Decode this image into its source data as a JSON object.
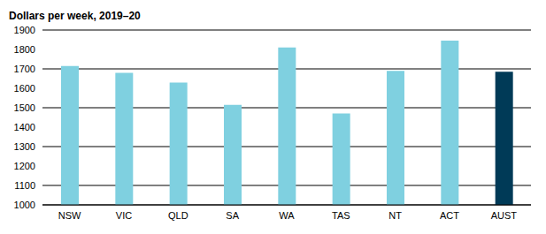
{
  "chart_data": {
    "type": "bar",
    "title": "Dollars per week, 2019–20",
    "categories": [
      "NSW",
      "VIC",
      "QLD",
      "SA",
      "WA",
      "TAS",
      "NT",
      "ACT",
      "AUST"
    ],
    "values": [
      1715,
      1680,
      1630,
      1515,
      1810,
      1470,
      1690,
      1845,
      1685
    ],
    "colors": [
      "#7fd0e0",
      "#7fd0e0",
      "#7fd0e0",
      "#7fd0e0",
      "#7fd0e0",
      "#7fd0e0",
      "#7fd0e0",
      "#7fd0e0",
      "#003a57"
    ],
    "ylim": [
      1000,
      1900
    ],
    "yticks": [
      1000,
      1100,
      1200,
      1300,
      1400,
      1500,
      1600,
      1700,
      1800,
      1900
    ],
    "grid": true
  }
}
